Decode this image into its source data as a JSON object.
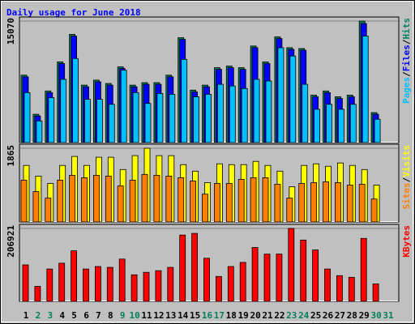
{
  "chart_data": [
    {
      "type": "bar",
      "title": "Daily usage for June 2018",
      "ylim": [
        0,
        15070
      ],
      "yticks": [
        15070
      ],
      "legend_separator": "/",
      "series": [
        {
          "name": "Hits",
          "color": "#00805c",
          "values": [
            8359,
            3509,
            6398,
            10010,
            13416,
            7121,
            7740,
            7327,
            9391,
            7121,
            7430,
            7430,
            8359,
            13003,
            6502,
            7121,
            9288,
            9494,
            9288,
            11971,
            10010,
            13106,
            11765,
            11662,
            5882,
            6398,
            5676,
            5882,
            15070,
            3715,
            0
          ]
        },
        {
          "name": "Files",
          "color": "#0000ff",
          "values": [
            8153,
            3303,
            6192,
            9804,
            13210,
            6915,
            7534,
            7121,
            9185,
            6915,
            7224,
            7224,
            8153,
            12797,
            6296,
            6915,
            9082,
            9288,
            9082,
            11765,
            9804,
            12900,
            11559,
            11456,
            5676,
            6192,
            5470,
            5676,
            14760,
            3509,
            0
          ]
        },
        {
          "name": "Pages",
          "color": "#00c0ff",
          "values": [
            6192,
            2683,
            5573,
            7843,
            10423,
            5366,
            5366,
            4747,
            8978,
            6192,
            4850,
            6089,
            5986,
            10320,
            5676,
            5986,
            7224,
            7018,
            6708,
            7843,
            7637,
            11765,
            10733,
            7224,
            4128,
            4747,
            4128,
            4747,
            13210,
            2890,
            0
          ]
        }
      ]
    },
    {
      "type": "bar",
      "ylim": [
        0,
        1865
      ],
      "yticks": [
        1865
      ],
      "legend_separator": "/",
      "series": [
        {
          "name": "Visits",
          "color": "#ffff00",
          "values": [
            1430,
            1160,
            974,
            1430,
            1658,
            1430,
            1637,
            1637,
            1326,
            1678,
            1865,
            1678,
            1678,
            1450,
            1285,
            995,
            1471,
            1450,
            1450,
            1533,
            1430,
            1285,
            891,
            1430,
            1471,
            1409,
            1492,
            1430,
            1326,
            932,
            0
          ]
        },
        {
          "name": "Sites",
          "color": "#ff8000",
          "values": [
            1057,
            767,
            601,
            1057,
            1181,
            1119,
            1181,
            1160,
            912,
            1057,
            1202,
            1181,
            1160,
            1119,
            1036,
            704,
            974,
            974,
            1077,
            1119,
            1119,
            953,
            601,
            974,
            995,
            1015,
            995,
            932,
            953,
            580,
            0
          ]
        }
      ]
    },
    {
      "type": "bar",
      "ylim": [
        0,
        206921
      ],
      "yticks": [
        206921
      ],
      "categories": [
        "1",
        "2",
        "3",
        "4",
        "5",
        "6",
        "7",
        "8",
        "9",
        "10",
        "11",
        "12",
        "13",
        "14",
        "15",
        "16",
        "17",
        "18",
        "19",
        "20",
        "21",
        "22",
        "23",
        "24",
        "25",
        "26",
        "27",
        "28",
        "29",
        "30",
        "31"
      ],
      "label_colors": [
        "#000000",
        "#00805c",
        "#00805c",
        "#000000",
        "#000000",
        "#000000",
        "#000000",
        "#000000",
        "#00805c",
        "#00805c",
        "#000000",
        "#000000",
        "#000000",
        "#000000",
        "#000000",
        "#00805c",
        "#00805c",
        "#000000",
        "#000000",
        "#000000",
        "#000000",
        "#000000",
        "#00805c",
        "#00805c",
        "#000000",
        "#000000",
        "#000000",
        "#000000",
        "#000000",
        "#00805c",
        "#00805c"
      ],
      "series": [
        {
          "name": "KBytes",
          "color": "#ff0000",
          "values": [
            103444,
            42318,
            91689,
            108146,
            143411,
            91689,
            98742,
            96391,
            119901,
            75232,
            82285,
            86987,
            96391,
            188080,
            192782,
            122252,
            70530,
            98742,
            110497,
            152815,
            134007,
            134007,
            206921,
            173974,
            145762,
            91689,
            72881,
            68179,
            178676,
            49371,
            0
          ]
        }
      ]
    }
  ]
}
